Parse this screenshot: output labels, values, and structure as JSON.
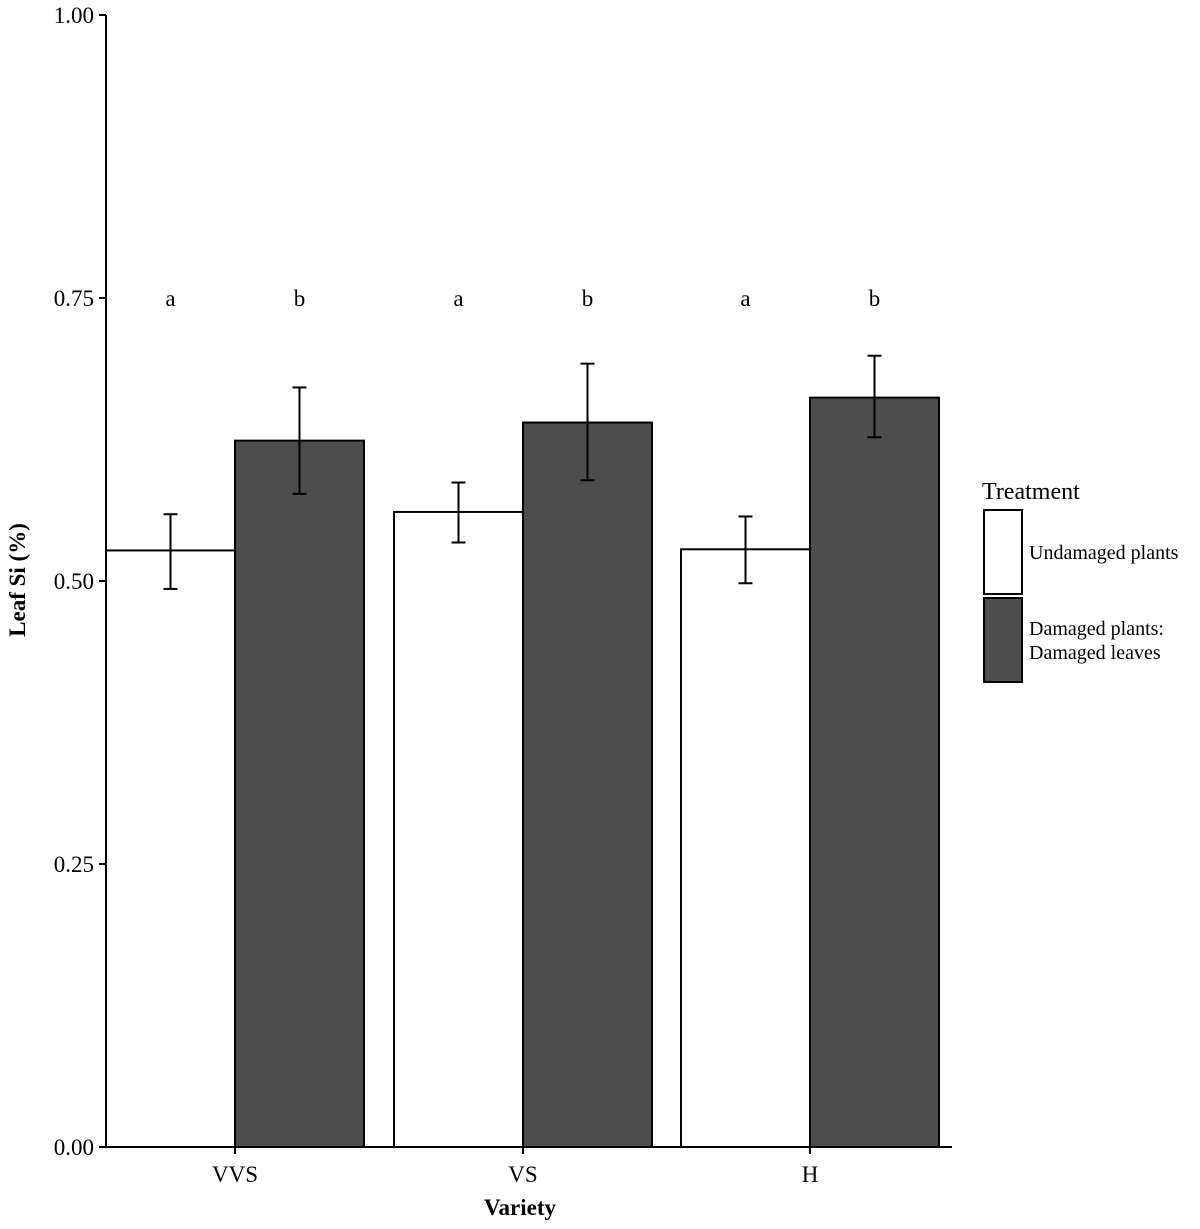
{
  "chart_data": {
    "type": "bar",
    "title": "",
    "xlabel": "Variety",
    "ylabel": "Leaf Si (%)",
    "ylim": [
      0,
      1
    ],
    "yticks": [
      "0.00",
      "0.25",
      "0.50",
      "0.75",
      "1.00"
    ],
    "categories": [
      "VVS",
      "VS",
      "H"
    ],
    "series": [
      {
        "name": "Undamaged plants",
        "color": "#ffffff",
        "values": [
          0.527,
          0.561,
          0.528
        ],
        "error_low": [
          0.493,
          0.534,
          0.498
        ],
        "error_high": [
          0.559,
          0.587,
          0.557
        ],
        "significance": [
          "a",
          "a",
          "a"
        ]
      },
      {
        "name": "Damaged plants:\nDamaged leaves",
        "color": "#4d4d4d",
        "values": [
          0.624,
          0.64,
          0.662
        ],
        "error_low": [
          0.577,
          0.589,
          0.627
        ],
        "error_high": [
          0.671,
          0.692,
          0.699
        ],
        "significance": [
          "b",
          "b",
          "b"
        ]
      }
    ],
    "significance_y": 0.75,
    "legend": {
      "title": "Treatment",
      "position": "right"
    },
    "grid": false
  }
}
